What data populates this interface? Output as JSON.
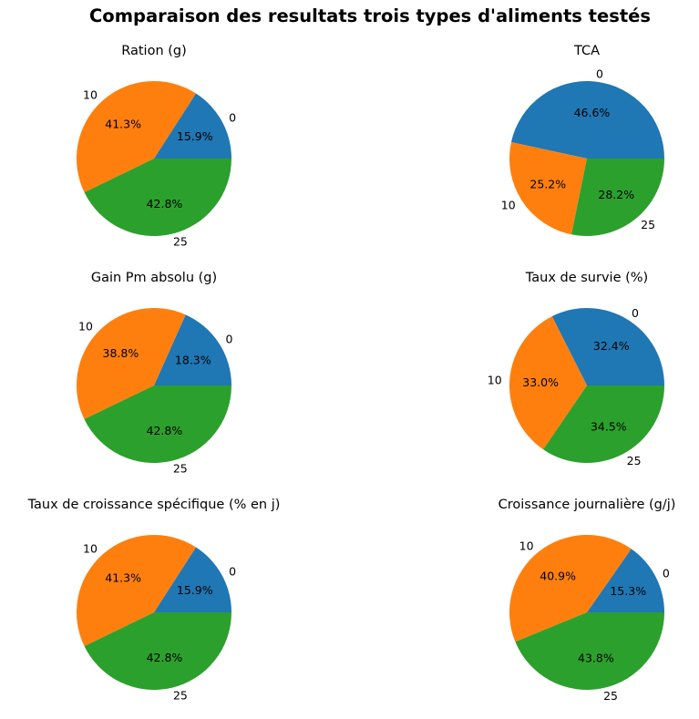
{
  "figure": {
    "title": "Comparaison des resultats trois types d'aliments testés"
  },
  "colors": {
    "0": "#1f77b4",
    "10": "#ff7f0e",
    "25": "#2ca02c"
  },
  "chart_data": [
    {
      "type": "pie",
      "title": "Ration (g)",
      "labels": [
        "0",
        "10",
        "25"
      ],
      "values": [
        15.9,
        41.3,
        42.8
      ],
      "autopct": [
        "15.9%",
        "41.3%",
        "42.8%"
      ]
    },
    {
      "type": "pie",
      "title": "TCA",
      "labels": [
        "0",
        "10",
        "25"
      ],
      "values": [
        46.6,
        25.2,
        28.2
      ],
      "autopct": [
        "46.6%",
        "25.2%",
        "28.2%"
      ]
    },
    {
      "type": "pie",
      "title": "Gain Pm absolu (g)",
      "labels": [
        "0",
        "10",
        "25"
      ],
      "values": [
        18.3,
        38.8,
        42.8
      ],
      "autopct": [
        "18.3%",
        "38.8%",
        "42.8%"
      ]
    },
    {
      "type": "pie",
      "title": "Taux de survie (%)",
      "labels": [
        "0",
        "10",
        "25"
      ],
      "values": [
        32.4,
        33.0,
        34.5
      ],
      "autopct": [
        "32.4%",
        "33.0%",
        "34.5%"
      ]
    },
    {
      "type": "pie",
      "title": "Taux de croissance spécifique (% en j)",
      "labels": [
        "0",
        "10",
        "25"
      ],
      "values": [
        15.9,
        41.3,
        42.8
      ],
      "autopct": [
        "15.9%",
        "41.3%",
        "42.8%"
      ]
    },
    {
      "type": "pie",
      "title": "Croissance journalière (g/j)",
      "labels": [
        "0",
        "10",
        "25"
      ],
      "values": [
        15.3,
        40.9,
        43.8
      ],
      "autopct": [
        "15.3%",
        "40.9%",
        "43.8%"
      ]
    }
  ]
}
